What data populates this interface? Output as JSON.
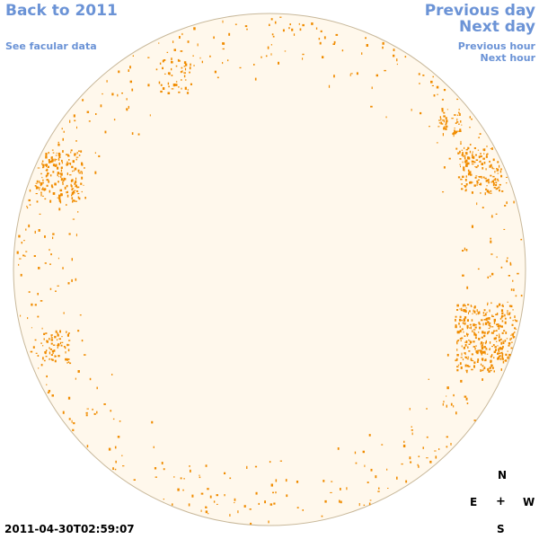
{
  "nav": {
    "back_label": "Back to 2011",
    "facular_label": "See facular data",
    "prev_day_label": "Previous day",
    "next_day_label": "Next day",
    "prev_hour_label": "Previous hour",
    "next_hour_label": "Next hour"
  },
  "timestamp": "2011-04-30T02:59:07",
  "compass": {
    "north": "N",
    "east": "E",
    "center": "+",
    "west": "W",
    "south": "S"
  },
  "colors": {
    "link": "#6b93d6",
    "disk_fill": "#fff8ec",
    "disk_border": "#c8b89a",
    "facula": "#f08c00"
  }
}
